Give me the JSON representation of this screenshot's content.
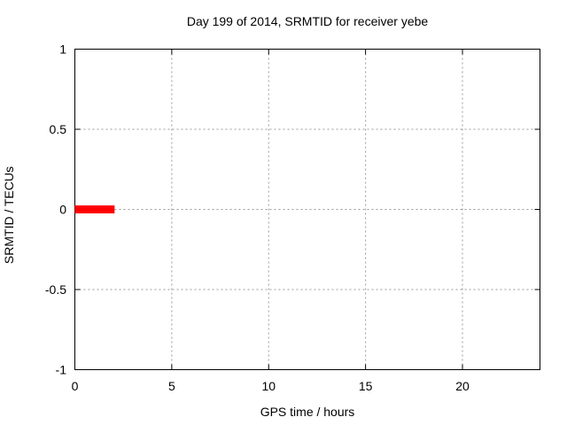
{
  "figure": {
    "background": "#ffffff"
  },
  "chart_data": {
    "type": "line",
    "title": "Day 199 of 2014, SRMTID for receiver yebe",
    "xlabel": "GPS time / hours",
    "ylabel": "SRMTID / TECUs",
    "xlim": [
      0,
      24
    ],
    "ylim": [
      -1,
      1
    ],
    "grid": true,
    "legend": "none",
    "xticks": {
      "values": [
        0,
        5,
        10,
        15,
        20
      ],
      "labels": [
        "0",
        "5",
        "10",
        "15",
        "20"
      ]
    },
    "yticks": {
      "values": [
        1,
        0.5,
        0,
        -0.5,
        -1
      ],
      "labels": [
        "1",
        "0.5",
        "0",
        "-0.5",
        "-1"
      ]
    },
    "series": [
      {
        "name": "SRMTID",
        "color": "#ff0000",
        "linewidth": 9,
        "x": [
          0,
          2.05
        ],
        "y": [
          0,
          0
        ]
      }
    ],
    "colors": {
      "series": "#ff0000",
      "grid": "#999999",
      "axis": "#000000",
      "text": "#000000"
    }
  }
}
